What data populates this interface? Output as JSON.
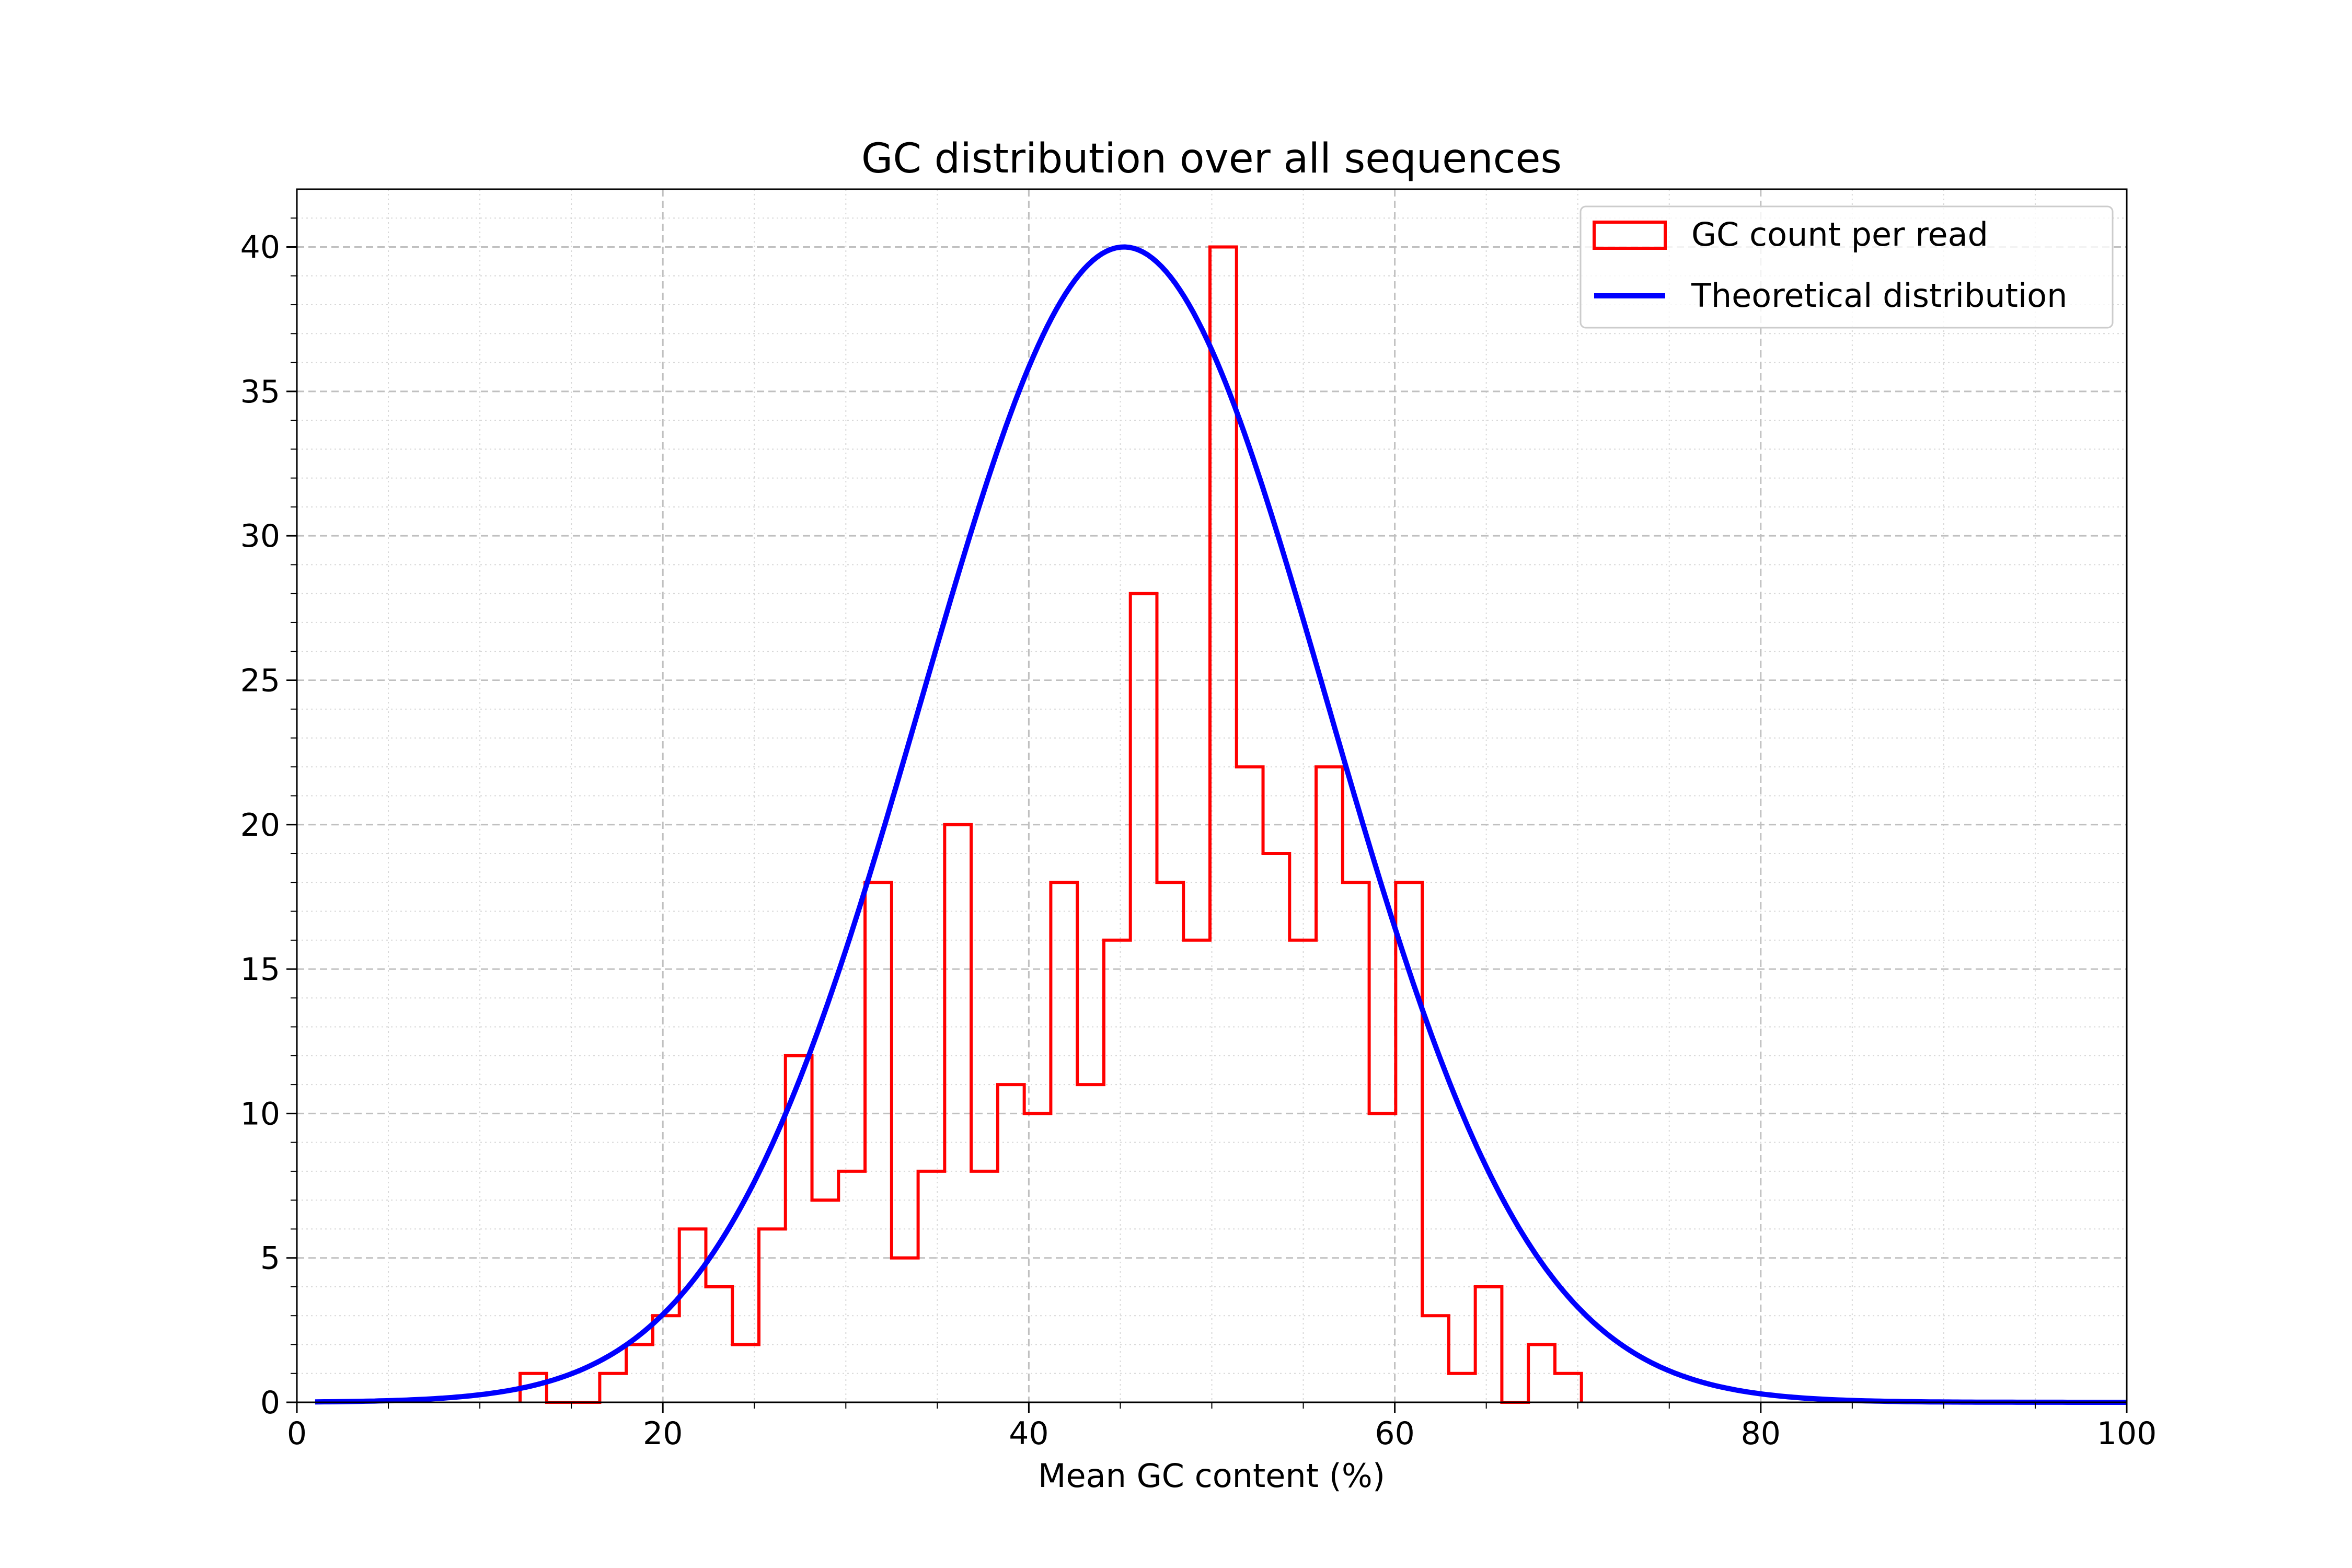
{
  "chart_data": {
    "type": "histogram",
    "title": "GC distribution over all sequences",
    "xlabel": "Mean GC content (%)",
    "ylabel": "",
    "xlim": [
      0,
      100
    ],
    "ylim": [
      0,
      42
    ],
    "x_ticks": [
      0,
      20,
      40,
      60,
      80,
      100
    ],
    "y_ticks": [
      0,
      5,
      10,
      15,
      20,
      25,
      30,
      35,
      40
    ],
    "grid": true,
    "legend_position": "top-right",
    "bin_edges": [
      12.2,
      13.65,
      15.1,
      16.55,
      18.0,
      19.45,
      20.9,
      22.35,
      23.8,
      25.25,
      26.7,
      28.15,
      29.6,
      31.05,
      32.5,
      33.95,
      35.4,
      36.85,
      38.3,
      39.75,
      41.2,
      42.65,
      44.1,
      45.55,
      47.0,
      48.45,
      49.9,
      51.35,
      52.8,
      54.25,
      55.7,
      57.15,
      58.6,
      60.05,
      61.5,
      62.95,
      64.4,
      65.85,
      67.3,
      68.75,
      70.2
    ],
    "counts": [
      1,
      0,
      0,
      1,
      2,
      3,
      6,
      4,
      2,
      6,
      12,
      7,
      8,
      18,
      5,
      8,
      20,
      8,
      11,
      10,
      18,
      11,
      16,
      28,
      18,
      16,
      40,
      22,
      19,
      16,
      22,
      18,
      10,
      18,
      3,
      1,
      4,
      0,
      2,
      1
    ],
    "theoretical": {
      "mean": 45.2,
      "sd": 11.1,
      "peak": 40,
      "x_range": [
        1,
        100
      ]
    },
    "series": [
      {
        "name": "GC count per read",
        "color": "#ff0000",
        "style": "step-histogram"
      },
      {
        "name": "Theoretical distribution",
        "color": "#0000ff",
        "style": "line"
      }
    ]
  }
}
